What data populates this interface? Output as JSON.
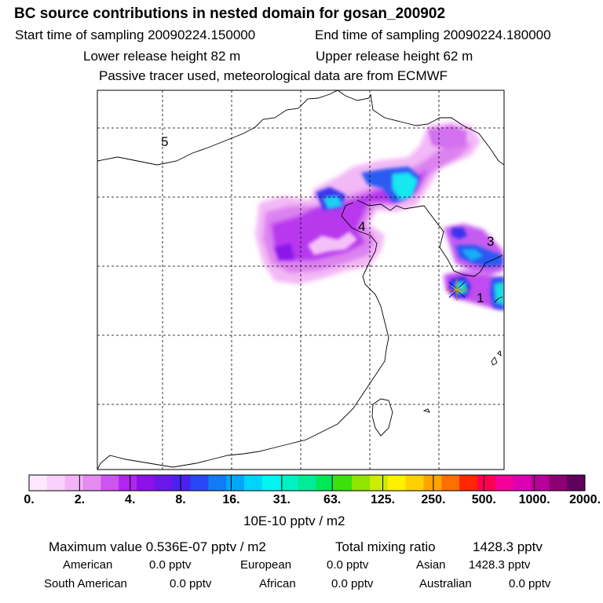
{
  "header": {
    "title": "BC  source contributions in nested domain for gosan_200902",
    "start_label": "Start time of sampling 20090224.150000",
    "end_label": "End time of sampling 20090224.180000",
    "lower_label": "Lower release height   82 m",
    "upper_label": "Upper release height   62 m",
    "note": "Passive tracer used, meteorological data are from ECMWF"
  },
  "map": {
    "labels": [
      "5",
      "4",
      "3",
      "1"
    ],
    "receptor_icon": "star-burst-icon"
  },
  "colorbar": {
    "colors": [
      "#fde8fd",
      "#f9d0f9",
      "#f2b4f6",
      "#e48bf0",
      "#cc55ee",
      "#b026ee",
      "#8c10ea",
      "#6a18ea",
      "#4a22f0",
      "#2848f5",
      "#127af5",
      "#00a8f8",
      "#00d4f8",
      "#00f6ef",
      "#00f2c4",
      "#00ec96",
      "#00e85a",
      "#3ae20a",
      "#92e400",
      "#ccec00",
      "#fff000",
      "#ffd000",
      "#ffa400",
      "#ff6e00",
      "#ff2600",
      "#ff0050",
      "#f4009a",
      "#dc00b2",
      "#b80098",
      "#8c0074",
      "#5e005c"
    ],
    "ticks": [
      "0.",
      "2.",
      "4.",
      "8.",
      "16.",
      "31.",
      "63.",
      "125.",
      "250.",
      "500.",
      "1000.",
      "2000."
    ],
    "unit": "10E-10 pptv / m2"
  },
  "stats": {
    "max_label": "Maximum value  0.536E-07 pptv / m2",
    "total_label": "Total mixing ratio",
    "total_value": "1428.3 pptv",
    "regions": [
      {
        "name": "American",
        "value": "0.0 pptv"
      },
      {
        "name": "European",
        "value": "0.0 pptv"
      },
      {
        "name": "Asian",
        "value": "1428.3 pptv"
      },
      {
        "name": "South American",
        "value": "0.0 pptv"
      },
      {
        "name": "African",
        "value": "0.0 pptv"
      },
      {
        "name": "Australian",
        "value": "0.0 pptv"
      }
    ]
  }
}
